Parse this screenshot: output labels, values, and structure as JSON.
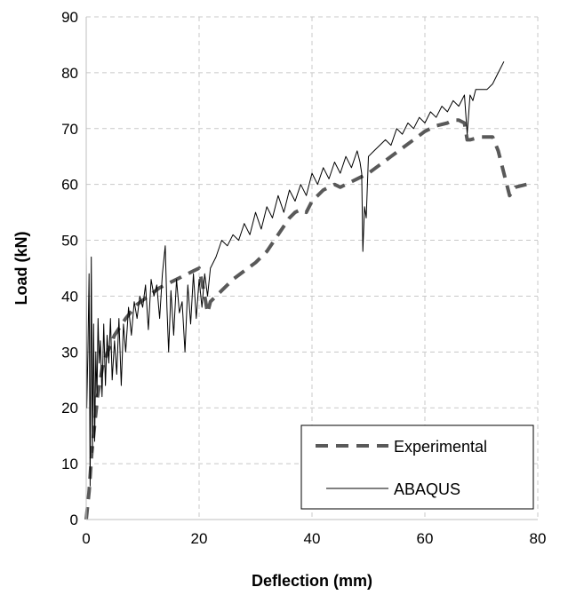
{
  "chart_data": {
    "type": "line",
    "title": "",
    "xlabel": "Deflection (mm)",
    "ylabel": "Load (kN)",
    "xlim": [
      0,
      80
    ],
    "ylim": [
      0,
      90
    ],
    "xticks": [
      "0",
      "20",
      "40",
      "60",
      "80"
    ],
    "yticks": [
      "0",
      "10",
      "20",
      "30",
      "40",
      "50",
      "60",
      "70",
      "80",
      "90"
    ],
    "grid": true,
    "legend_position": "bottom-right",
    "series": [
      {
        "name": "Experimental",
        "style": "dashed",
        "color": "#595959",
        "x": [
          0,
          0.5,
          1,
          2,
          3,
          5,
          7,
          9,
          11,
          13,
          15,
          17,
          19,
          20,
          21,
          21.5,
          22,
          24,
          26,
          28,
          30,
          32,
          34,
          36,
          37,
          38,
          39,
          40,
          42,
          44,
          45,
          46,
          48,
          50,
          52,
          54,
          56,
          58,
          60,
          62,
          64,
          65,
          66,
          67,
          67.5,
          68,
          70,
          72,
          73,
          74,
          75,
          76,
          78
        ],
        "values": [
          0,
          5,
          12,
          22,
          28,
          33,
          36,
          38.5,
          40,
          41.5,
          42.5,
          43.5,
          44.5,
          45,
          40,
          37,
          39,
          41,
          43,
          44.5,
          46,
          48,
          51,
          54,
          55,
          55.5,
          55,
          57,
          59,
          60,
          59.5,
          60,
          61,
          62,
          63.5,
          65,
          66.5,
          68,
          69.5,
          70.5,
          71,
          71.5,
          71.5,
          71,
          68,
          68,
          68.5,
          68.5,
          66,
          62,
          58,
          59.5,
          60
        ]
      },
      {
        "name": "ABAQUS",
        "style": "solid",
        "color": "#000000",
        "x": [
          0,
          0.1,
          0.3,
          0.5,
          0.7,
          0.9,
          1.1,
          1.3,
          1.5,
          1.7,
          1.9,
          2.1,
          2.3,
          2.5,
          2.8,
          3.1,
          3.4,
          3.7,
          4,
          4.3,
          4.6,
          5,
          5.4,
          5.8,
          6.2,
          6.6,
          7,
          7.5,
          8,
          8.5,
          9,
          9.5,
          10,
          10.5,
          11,
          11.5,
          12,
          12.5,
          13,
          13.5,
          14,
          14.3,
          14.6,
          15,
          15.5,
          16,
          16.5,
          17,
          17.5,
          18,
          18.5,
          19,
          19.5,
          20,
          20.5,
          21,
          21.5,
          22,
          23,
          24,
          25,
          26,
          27,
          28,
          29,
          30,
          31,
          32,
          33,
          34,
          35,
          36,
          37,
          38,
          39,
          40,
          41,
          42,
          43,
          44,
          45,
          46,
          47,
          48,
          48.5,
          48.8,
          49,
          49.3,
          49.6,
          50,
          51,
          52,
          53,
          54,
          55,
          56,
          57,
          58,
          59,
          60,
          61,
          62,
          63,
          64,
          65,
          66,
          67,
          67.5,
          68,
          68.5,
          69,
          70,
          71,
          72,
          73,
          74
        ],
        "values": [
          49,
          20,
          30,
          44,
          6,
          47,
          12,
          35,
          14,
          30,
          22,
          36,
          28,
          32,
          22,
          35,
          24,
          33,
          28,
          36,
          25,
          32,
          26,
          36,
          24,
          35,
          30,
          38,
          33,
          39,
          36,
          40,
          38,
          42,
          34,
          43,
          40,
          42,
          36,
          44,
          49,
          38,
          30,
          41,
          33,
          43,
          37,
          39,
          30,
          42,
          35,
          44,
          36,
          43,
          38,
          44,
          40,
          45,
          47,
          50,
          49,
          51,
          50,
          53,
          51,
          55,
          52,
          56,
          54,
          58,
          55,
          59,
          57,
          60,
          58,
          62,
          60,
          63,
          61,
          64,
          62,
          65,
          63,
          66,
          64,
          62,
          48,
          56,
          54,
          65,
          66,
          67,
          68,
          67,
          70,
          69,
          71,
          70,
          72,
          71,
          73,
          72,
          74,
          73,
          75,
          74,
          76,
          69,
          76,
          75,
          77,
          77,
          77,
          78,
          80,
          82
        ]
      }
    ]
  }
}
